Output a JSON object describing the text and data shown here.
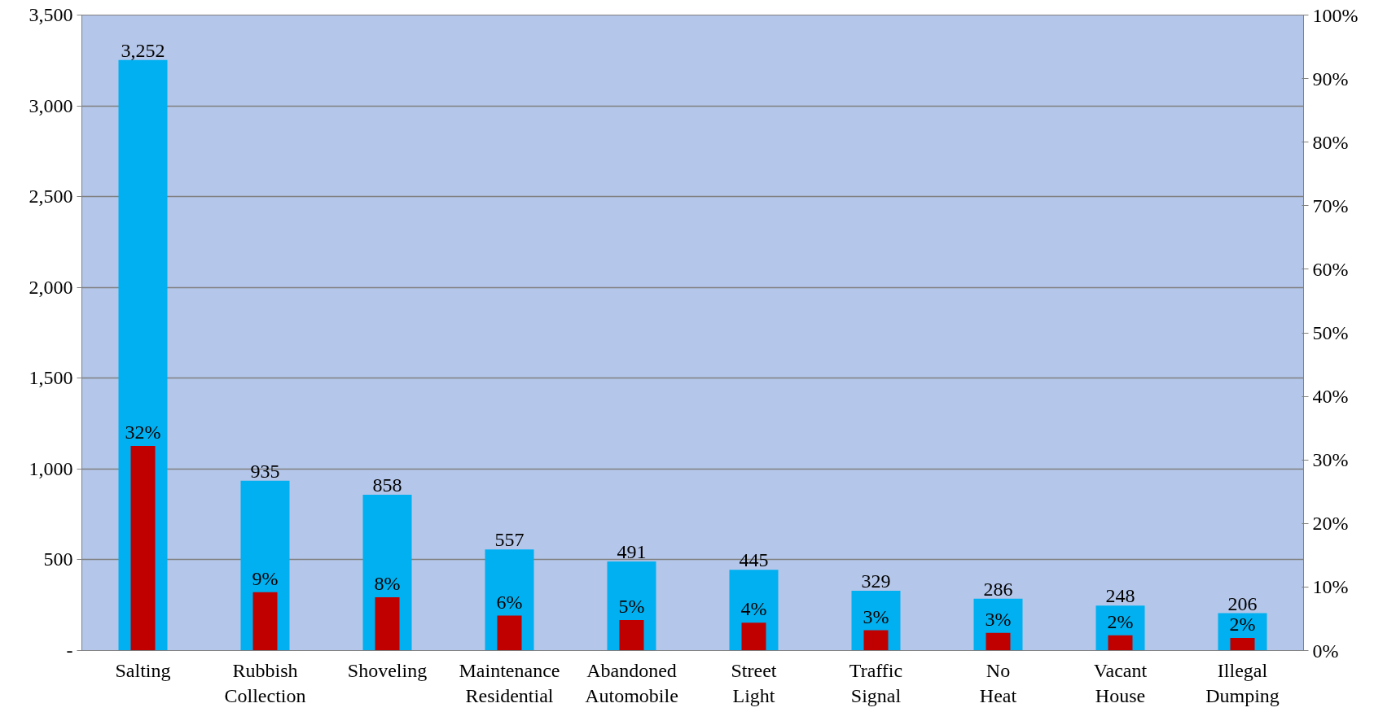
{
  "chart_data": {
    "type": "bar",
    "categories": [
      "Salting",
      "Rubbish\nCollection",
      "Shoveling",
      "Maintenance\nResidential",
      "Abandoned\nAutomobile",
      "Street\nLight",
      "Traffic\nSignal",
      "No\nHeat",
      "Vacant\nHouse",
      "Illegal\nDumping"
    ],
    "series": [
      {
        "color": "#00b0f0",
        "values": [
          3252,
          935,
          858,
          557,
          491,
          445,
          329,
          286,
          248,
          206
        ],
        "value_labels": [
          "3,252",
          "935",
          "858",
          "557",
          "491",
          "445",
          "329",
          "286",
          "248",
          "206"
        ]
      },
      {
        "color": "#c00000",
        "axis": "y2",
        "values": [
          32.2,
          9.2,
          8.4,
          5.5,
          4.8,
          4.4,
          3.2,
          2.8,
          2.4,
          2.0
        ],
        "value_labels": [
          "32%",
          "9%",
          "8%",
          "6%",
          "5%",
          "4%",
          "3%",
          "3%",
          "2%",
          "2%"
        ]
      }
    ],
    "ylim": [
      0,
      3500
    ],
    "yticks": [
      {
        "value": 0,
        "label": "-"
      },
      500,
      {
        "value": 1000,
        "label": "1,000"
      },
      {
        "value": 1500,
        "label": "1,500"
      },
      {
        "value": 2000,
        "label": "2,000"
      },
      {
        "value": 2500,
        "label": "2,500"
      },
      {
        "value": 3000,
        "label": "3,000"
      },
      {
        "value": 3500,
        "label": "3,500"
      }
    ],
    "y2lim": [
      0,
      100
    ],
    "y2ticks": [
      {
        "value": 0,
        "label": "0%"
      },
      {
        "value": 10,
        "label": "10%"
      },
      {
        "value": 20,
        "label": "20%"
      },
      {
        "value": 30,
        "label": "30%"
      },
      {
        "value": 40,
        "label": "40%"
      },
      {
        "value": 50,
        "label": "50%"
      },
      {
        "value": 60,
        "label": "60%"
      },
      {
        "value": 70,
        "label": "70%"
      },
      {
        "value": 80,
        "label": "80%"
      },
      {
        "value": 90,
        "label": "90%"
      },
      {
        "value": 100,
        "label": "100%"
      }
    ],
    "grid": "y"
  }
}
